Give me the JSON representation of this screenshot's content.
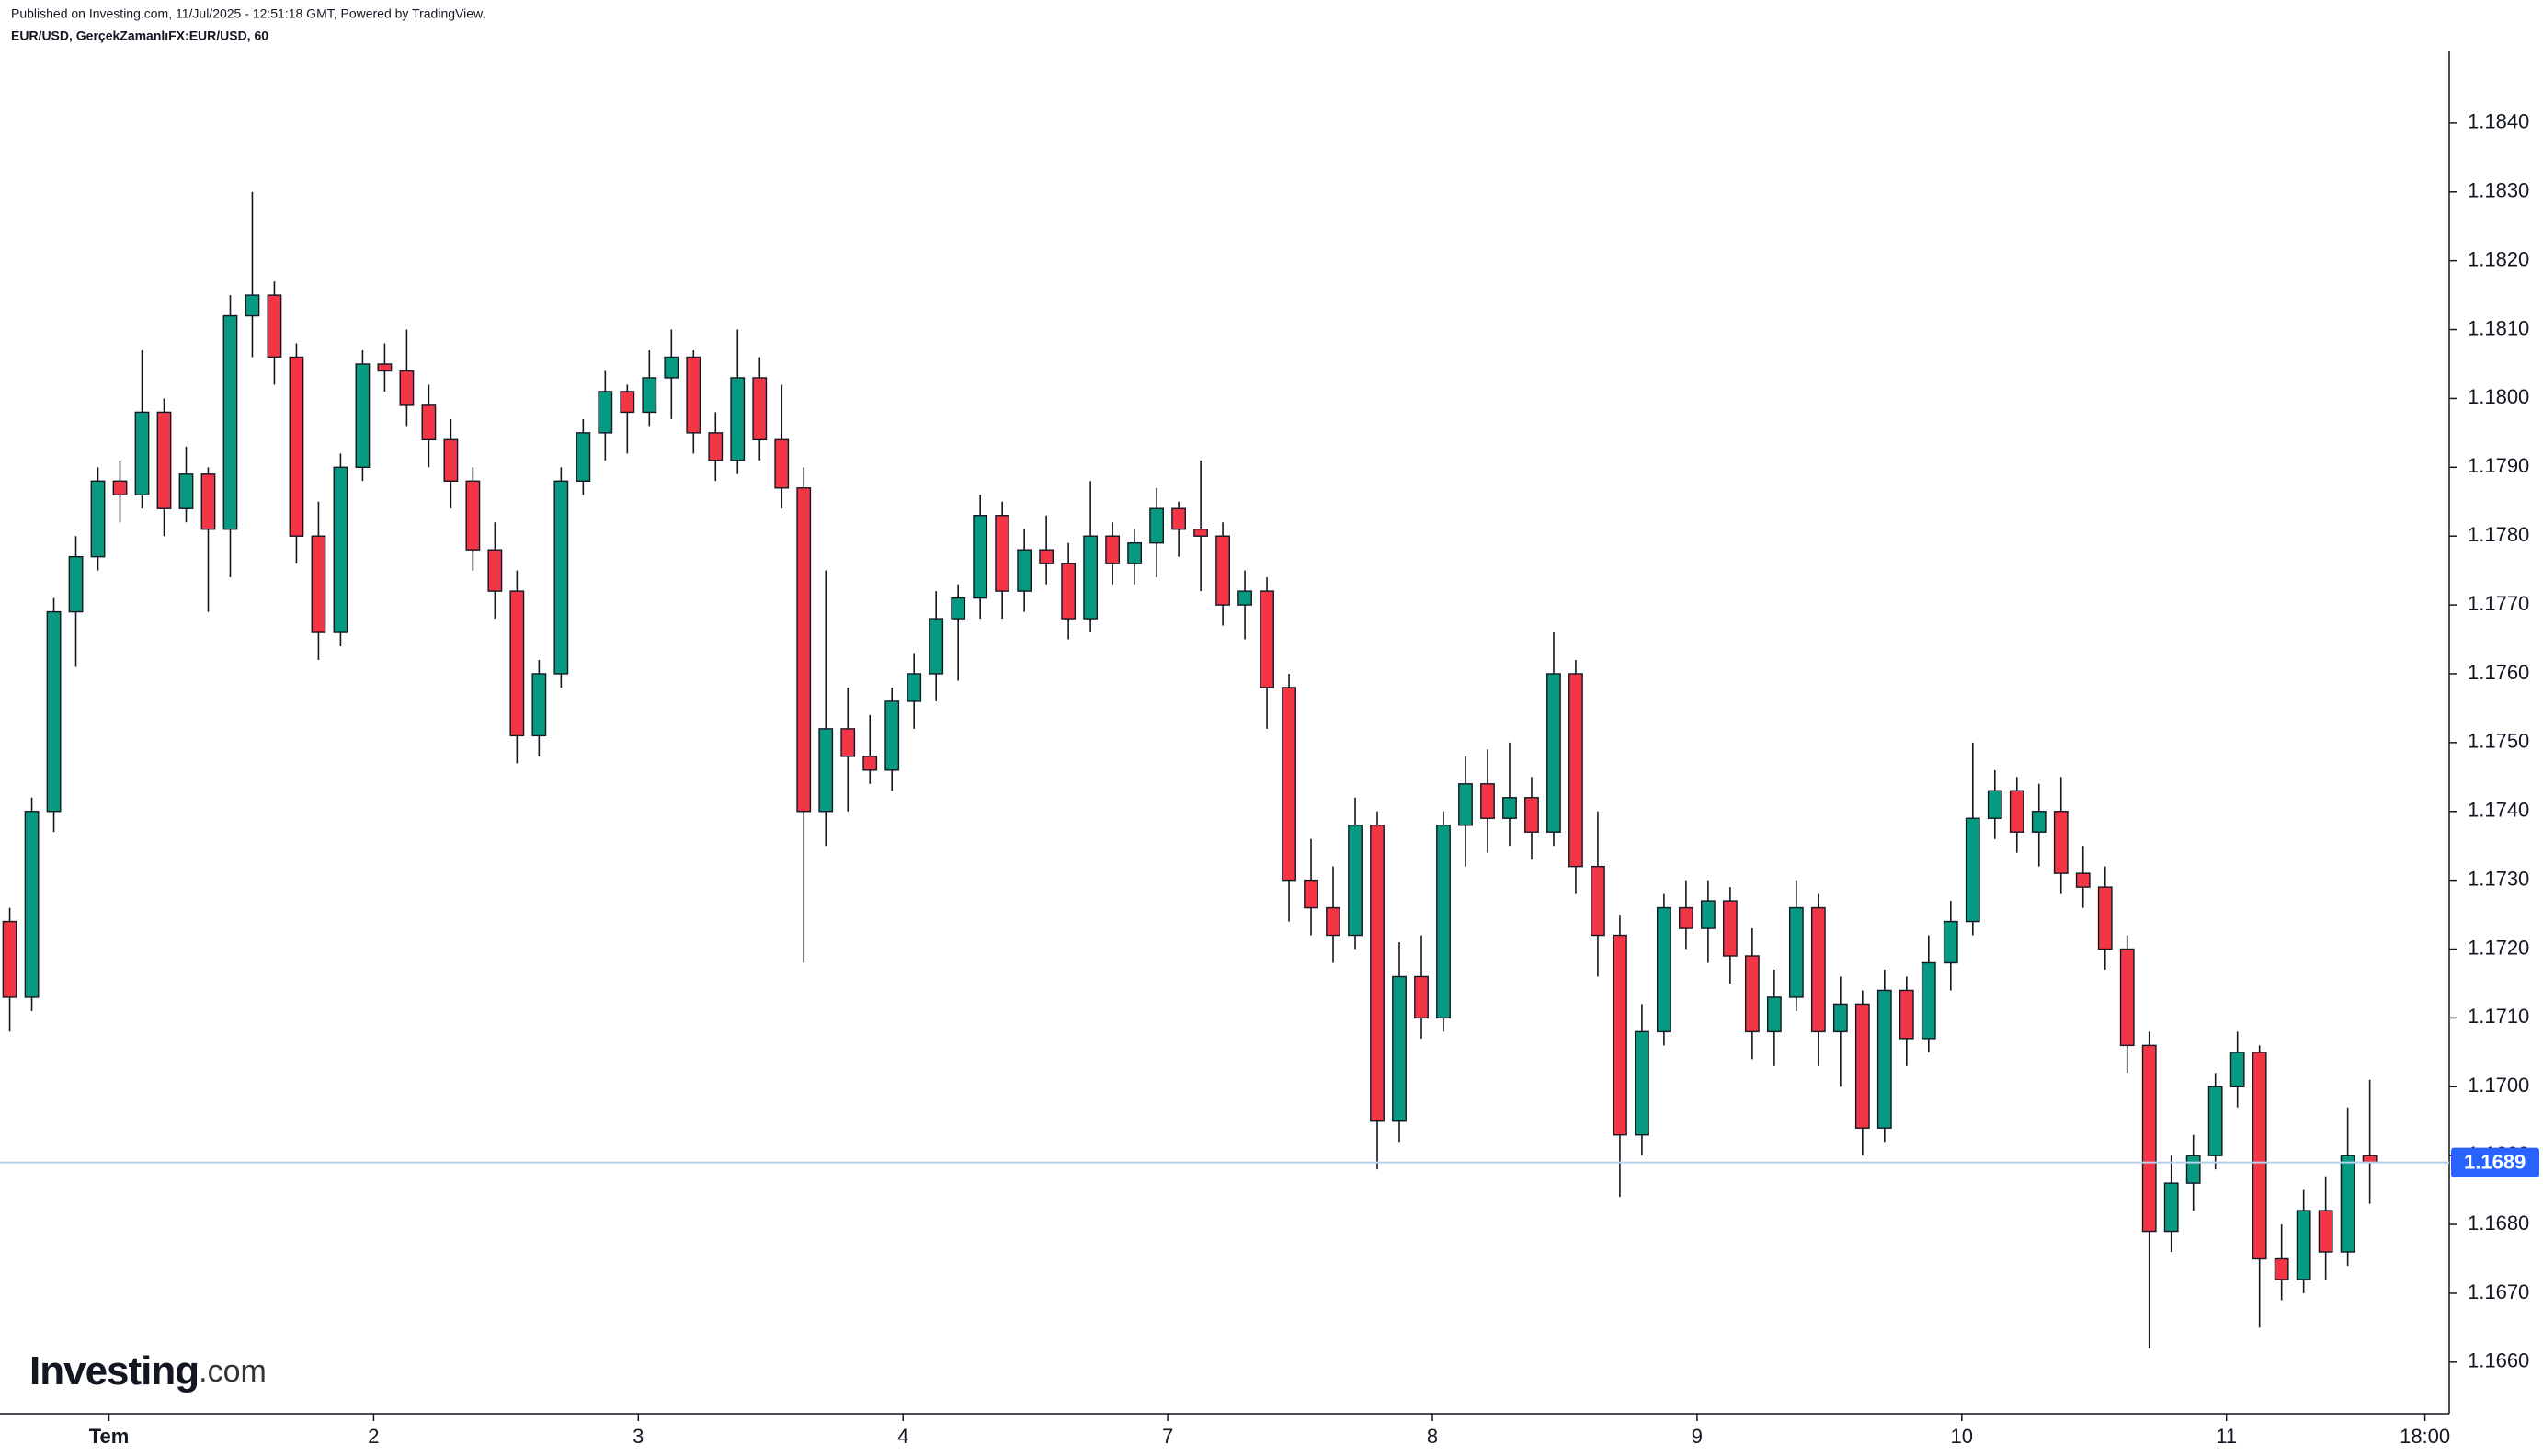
{
  "header": {
    "published": "Published on Investing.com, 11/Jul/2025 - 12:51:18 GMT, Powered by TradingView.",
    "symbol": "EUR/USD, GerçekZamanlıFX:EUR/USD, 60"
  },
  "logo": {
    "brand": "Investing",
    "suffix": ".com"
  },
  "chart_data": {
    "type": "candlestick",
    "up_color": "#089981",
    "down_color": "#f23645",
    "last_color": "#2962ff",
    "xlim": [
      -0.44,
      110.6
    ],
    "xticks": [
      {
        "value": 4.5,
        "label": "Tem"
      },
      {
        "value": 16.5,
        "label": "2"
      },
      {
        "value": 28.5,
        "label": "3"
      },
      {
        "value": 40.5,
        "label": "4"
      },
      {
        "value": 52.5,
        "label": "7"
      },
      {
        "value": 64.5,
        "label": "8"
      },
      {
        "value": 76.5,
        "label": "9"
      },
      {
        "value": 88.5,
        "label": "10"
      },
      {
        "value": 100.5,
        "label": "11"
      },
      {
        "value": 109.5,
        "label": "18:00"
      }
    ],
    "ylim": [
      1.16525,
      1.18504
    ],
    "yticks": [
      {
        "value": 1.166,
        "label": "1.1660"
      },
      {
        "value": 1.167,
        "label": "1.1670"
      },
      {
        "value": 1.168,
        "label": "1.1680"
      },
      {
        "value": 1.169,
        "label": "1.1690"
      },
      {
        "value": 1.17,
        "label": "1.1700"
      },
      {
        "value": 1.171,
        "label": "1.1710"
      },
      {
        "value": 1.172,
        "label": "1.1720"
      },
      {
        "value": 1.173,
        "label": "1.1730"
      },
      {
        "value": 1.174,
        "label": "1.1740"
      },
      {
        "value": 1.175,
        "label": "1.1750"
      },
      {
        "value": 1.176,
        "label": "1.1760"
      },
      {
        "value": 1.177,
        "label": "1.1770"
      },
      {
        "value": 1.178,
        "label": "1.1780"
      },
      {
        "value": 1.179,
        "label": "1.1790"
      },
      {
        "value": 1.18,
        "label": "1.1800"
      },
      {
        "value": 1.181,
        "label": "1.1810"
      },
      {
        "value": 1.182,
        "label": "1.1820"
      },
      {
        "value": 1.183,
        "label": "1.1830"
      },
      {
        "value": 1.184,
        "label": "1.1840"
      }
    ],
    "last_price": 1.1689,
    "candles": [
      [
        1.1724,
        1.1726,
        1.1708,
        1.1713
      ],
      [
        1.1713,
        1.1742,
        1.1711,
        1.174
      ],
      [
        1.174,
        1.1771,
        1.1737,
        1.1769
      ],
      [
        1.1769,
        1.178,
        1.1761,
        1.1777
      ],
      [
        1.1777,
        1.179,
        1.1775,
        1.1788
      ],
      [
        1.1788,
        1.1791,
        1.1782,
        1.1786
      ],
      [
        1.1786,
        1.1807,
        1.1784,
        1.1798
      ],
      [
        1.1798,
        1.18,
        1.178,
        1.1784
      ],
      [
        1.1784,
        1.1793,
        1.1782,
        1.1789
      ],
      [
        1.1789,
        1.179,
        1.1769,
        1.1781
      ],
      [
        1.1781,
        1.1815,
        1.1774,
        1.1812
      ],
      [
        1.1812,
        1.183,
        1.1806,
        1.1815
      ],
      [
        1.1815,
        1.1817,
        1.1802,
        1.1806
      ],
      [
        1.1806,
        1.1808,
        1.1776,
        1.178
      ],
      [
        1.178,
        1.1785,
        1.1762,
        1.1766
      ],
      [
        1.1766,
        1.1792,
        1.1764,
        1.179
      ],
      [
        1.179,
        1.1807,
        1.1788,
        1.1805
      ],
      [
        1.1805,
        1.1808,
        1.1801,
        1.1804
      ],
      [
        1.1804,
        1.181,
        1.1796,
        1.1799
      ],
      [
        1.1799,
        1.1802,
        1.179,
        1.1794
      ],
      [
        1.1794,
        1.1797,
        1.1784,
        1.1788
      ],
      [
        1.1788,
        1.179,
        1.1775,
        1.1778
      ],
      [
        1.1778,
        1.1782,
        1.1768,
        1.1772
      ],
      [
        1.1772,
        1.1775,
        1.1747,
        1.1751
      ],
      [
        1.1751,
        1.1762,
        1.1748,
        1.176
      ],
      [
        1.176,
        1.179,
        1.1758,
        1.1788
      ],
      [
        1.1788,
        1.1797,
        1.1786,
        1.1795
      ],
      [
        1.1795,
        1.1804,
        1.1791,
        1.1801
      ],
      [
        1.1801,
        1.1802,
        1.1792,
        1.1798
      ],
      [
        1.1798,
        1.1807,
        1.1796,
        1.1803
      ],
      [
        1.1803,
        1.181,
        1.1797,
        1.1806
      ],
      [
        1.1806,
        1.1807,
        1.1792,
        1.1795
      ],
      [
        1.1795,
        1.1798,
        1.1788,
        1.1791
      ],
      [
        1.1791,
        1.181,
        1.1789,
        1.1803
      ],
      [
        1.1803,
        1.1806,
        1.1791,
        1.1794
      ],
      [
        1.1794,
        1.1802,
        1.1784,
        1.1787
      ],
      [
        1.1787,
        1.179,
        1.1718,
        1.174
      ],
      [
        1.174,
        1.1775,
        1.1735,
        1.1752
      ],
      [
        1.1752,
        1.1758,
        1.174,
        1.1748
      ],
      [
        1.1748,
        1.1754,
        1.1744,
        1.1746
      ],
      [
        1.1746,
        1.1758,
        1.1743,
        1.1756
      ],
      [
        1.1756,
        1.1763,
        1.1752,
        1.176
      ],
      [
        1.176,
        1.1772,
        1.1756,
        1.1768
      ],
      [
        1.1768,
        1.1773,
        1.1759,
        1.1771
      ],
      [
        1.1771,
        1.1786,
        1.1768,
        1.1783
      ],
      [
        1.1783,
        1.1785,
        1.1768,
        1.1772
      ],
      [
        1.1772,
        1.1781,
        1.1769,
        1.1778
      ],
      [
        1.1778,
        1.1783,
        1.1773,
        1.1776
      ],
      [
        1.1776,
        1.1779,
        1.1765,
        1.1768
      ],
      [
        1.1768,
        1.1788,
        1.1766,
        1.178
      ],
      [
        1.178,
        1.1782,
        1.1773,
        1.1776
      ],
      [
        1.1776,
        1.1781,
        1.1773,
        1.1779
      ],
      [
        1.1779,
        1.1787,
        1.1774,
        1.1784
      ],
      [
        1.1784,
        1.1785,
        1.1777,
        1.1781
      ],
      [
        1.1781,
        1.1791,
        1.1772,
        1.178
      ],
      [
        1.178,
        1.1782,
        1.1767,
        1.177
      ],
      [
        1.177,
        1.1775,
        1.1765,
        1.1772
      ],
      [
        1.1772,
        1.1774,
        1.1752,
        1.1758
      ],
      [
        1.1758,
        1.176,
        1.1724,
        1.173
      ],
      [
        1.173,
        1.1736,
        1.1722,
        1.1726
      ],
      [
        1.1726,
        1.1732,
        1.1718,
        1.1722
      ],
      [
        1.1722,
        1.1742,
        1.172,
        1.1738
      ],
      [
        1.1738,
        1.174,
        1.1688,
        1.1695
      ],
      [
        1.1695,
        1.1721,
        1.1692,
        1.1716
      ],
      [
        1.1716,
        1.1722,
        1.1707,
        1.171
      ],
      [
        1.171,
        1.174,
        1.1708,
        1.1738
      ],
      [
        1.1738,
        1.1748,
        1.1732,
        1.1744
      ],
      [
        1.1744,
        1.1749,
        1.1734,
        1.1739
      ],
      [
        1.1739,
        1.175,
        1.1735,
        1.1742
      ],
      [
        1.1742,
        1.1745,
        1.1733,
        1.1737
      ],
      [
        1.1737,
        1.1766,
        1.1735,
        1.176
      ],
      [
        1.176,
        1.1762,
        1.1728,
        1.1732
      ],
      [
        1.1732,
        1.174,
        1.1716,
        1.1722
      ],
      [
        1.1722,
        1.1725,
        1.1684,
        1.1693
      ],
      [
        1.1693,
        1.1712,
        1.169,
        1.1708
      ],
      [
        1.1708,
        1.1728,
        1.1706,
        1.1726
      ],
      [
        1.1726,
        1.173,
        1.172,
        1.1723
      ],
      [
        1.1723,
        1.173,
        1.1718,
        1.1727
      ],
      [
        1.1727,
        1.1729,
        1.1715,
        1.1719
      ],
      [
        1.1719,
        1.1723,
        1.1704,
        1.1708
      ],
      [
        1.1708,
        1.1717,
        1.1703,
        1.1713
      ],
      [
        1.1713,
        1.173,
        1.1711,
        1.1726
      ],
      [
        1.1726,
        1.1728,
        1.1703,
        1.1708
      ],
      [
        1.1708,
        1.1716,
        1.17,
        1.1712
      ],
      [
        1.1712,
        1.1714,
        1.169,
        1.1694
      ],
      [
        1.1694,
        1.1717,
        1.1692,
        1.1714
      ],
      [
        1.1714,
        1.1716,
        1.1703,
        1.1707
      ],
      [
        1.1707,
        1.1722,
        1.1705,
        1.1718
      ],
      [
        1.1718,
        1.1727,
        1.1714,
        1.1724
      ],
      [
        1.1724,
        1.175,
        1.1722,
        1.1739
      ],
      [
        1.1739,
        1.1746,
        1.1736,
        1.1743
      ],
      [
        1.1743,
        1.1745,
        1.1734,
        1.1737
      ],
      [
        1.1737,
        1.1744,
        1.1732,
        1.174
      ],
      [
        1.174,
        1.1745,
        1.1728,
        1.1731
      ],
      [
        1.1731,
        1.1735,
        1.1726,
        1.1729
      ],
      [
        1.1729,
        1.1732,
        1.1717,
        1.172
      ],
      [
        1.172,
        1.1722,
        1.1702,
        1.1706
      ],
      [
        1.1706,
        1.1708,
        1.1662,
        1.1679
      ],
      [
        1.1679,
        1.169,
        1.1676,
        1.1686
      ],
      [
        1.1686,
        1.1693,
        1.1682,
        1.169
      ],
      [
        1.169,
        1.1702,
        1.1688,
        1.17
      ],
      [
        1.17,
        1.1708,
        1.1697,
        1.1705
      ],
      [
        1.1705,
        1.1706,
        1.1665,
        1.1675
      ],
      [
        1.1675,
        1.168,
        1.1669,
        1.1672
      ],
      [
        1.1672,
        1.1685,
        1.167,
        1.1682
      ],
      [
        1.1682,
        1.1687,
        1.1672,
        1.1676
      ],
      [
        1.1676,
        1.1697,
        1.1674,
        1.169
      ],
      [
        1.169,
        1.1701,
        1.1683,
        1.1689
      ]
    ]
  }
}
